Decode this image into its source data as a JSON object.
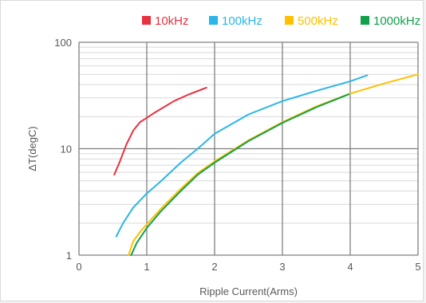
{
  "chart_data": {
    "type": "line",
    "title": "",
    "xlabel": "Ripple Current(Arms)",
    "ylabel": "ΔT(degC)",
    "xlim": [
      0,
      5
    ],
    "ylim": [
      1,
      100
    ],
    "yscale": "log",
    "x_ticks": [
      "0",
      "1",
      "2",
      "3",
      "4",
      "5"
    ],
    "y_ticks": [
      "1",
      "10",
      "100"
    ],
    "grid": true,
    "legend_position": "top",
    "series": [
      {
        "name": "10kHz",
        "color": "#e8313f",
        "points": [
          [
            0.52,
            5.7
          ],
          [
            0.6,
            7.5
          ],
          [
            0.7,
            11.0
          ],
          [
            0.8,
            14.8
          ],
          [
            0.9,
            17.8
          ],
          [
            1.0,
            19.5
          ],
          [
            1.1,
            21.5
          ],
          [
            1.2,
            23.5
          ],
          [
            1.4,
            28.0
          ],
          [
            1.6,
            32.0
          ],
          [
            1.88,
            37.5
          ]
        ]
      },
      {
        "name": "100kHz",
        "color": "#29b6e8",
        "points": [
          [
            0.55,
            1.5
          ],
          [
            0.65,
            2.0
          ],
          [
            0.8,
            2.8
          ],
          [
            1.0,
            3.8
          ],
          [
            1.2,
            4.9
          ],
          [
            1.5,
            7.4
          ],
          [
            1.75,
            10.0
          ],
          [
            2.0,
            13.8
          ],
          [
            2.5,
            21.0
          ],
          [
            3.0,
            28.0
          ],
          [
            3.5,
            35.0
          ],
          [
            4.0,
            43.0
          ],
          [
            4.25,
            49.0
          ]
        ]
      },
      {
        "name": "500kHz",
        "color": "#ffc000",
        "points": [
          [
            0.73,
            1.0
          ],
          [
            0.8,
            1.35
          ],
          [
            0.9,
            1.65
          ],
          [
            1.0,
            1.95
          ],
          [
            1.2,
            2.7
          ],
          [
            1.5,
            4.2
          ],
          [
            1.75,
            5.9
          ],
          [
            2.0,
            7.6
          ],
          [
            2.5,
            12.0
          ],
          [
            3.0,
            17.8
          ],
          [
            3.5,
            25.0
          ],
          [
            4.0,
            33.0
          ],
          [
            4.5,
            41.0
          ],
          [
            5.0,
            50.0
          ]
        ]
      },
      {
        "name": "1000kHz",
        "color": "#10a14a",
        "points": [
          [
            0.77,
            1.0
          ],
          [
            0.85,
            1.3
          ],
          [
            1.0,
            1.8
          ],
          [
            1.2,
            2.55
          ],
          [
            1.5,
            4.0
          ],
          [
            1.75,
            5.7
          ],
          [
            2.0,
            7.4
          ],
          [
            2.5,
            11.8
          ],
          [
            3.0,
            17.5
          ],
          [
            3.5,
            24.5
          ],
          [
            3.98,
            32.5
          ]
        ]
      }
    ]
  }
}
